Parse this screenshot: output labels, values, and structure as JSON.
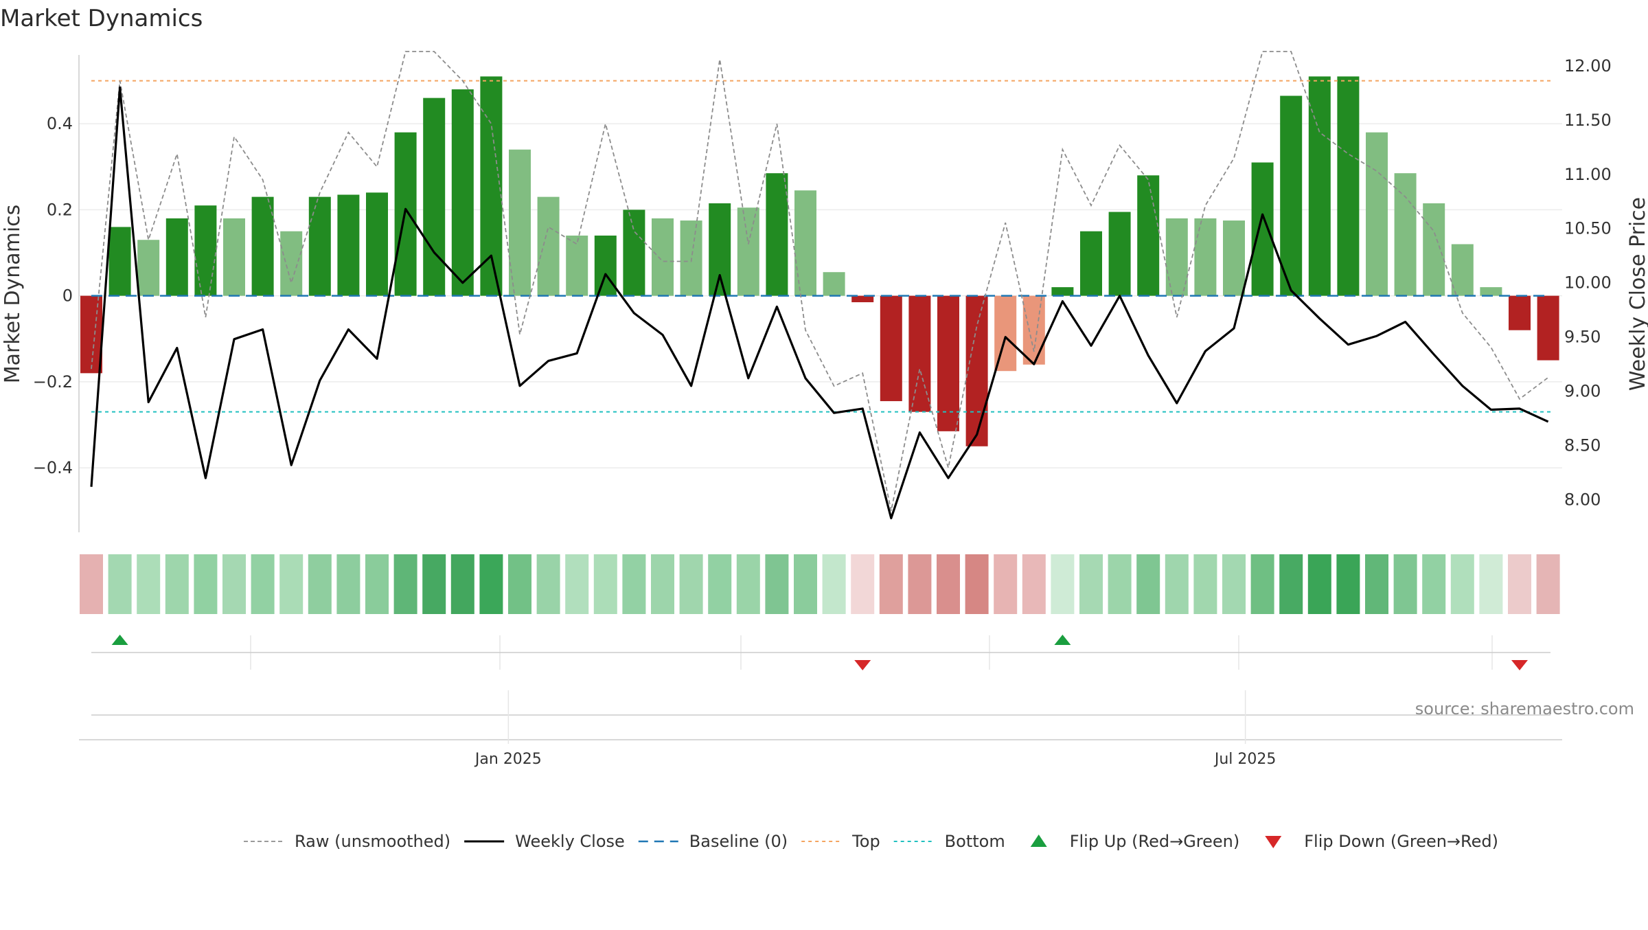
{
  "title": "Market Dynamics",
  "source_text": "source: sharemaestro.com",
  "chart_data": {
    "type": "bar",
    "title": "Market Dynamics",
    "y_left_label": "Market Dynamics",
    "y_right_label": "Weekly Close Price",
    "y_left_range": [
      -0.55,
      0.56
    ],
    "y_right_range": [
      7.7,
      12.1
    ],
    "y_left_ticks": [
      "−0.4",
      "−0.2",
      "0",
      "0.2",
      "0.4"
    ],
    "y_left_tick_values": [
      -0.4,
      -0.2,
      0,
      0.2,
      0.4
    ],
    "y_right_ticks": [
      "8.00",
      "8.50",
      "9.00",
      "9.50",
      "10.00",
      "10.50",
      "11.00",
      "11.50",
      "12.00"
    ],
    "y_right_tick_values": [
      8.0,
      8.5,
      9.0,
      9.5,
      10.0,
      10.5,
      11.0,
      11.5,
      12.0
    ],
    "x_tick_labels": [
      {
        "label": "Jan 2025",
        "index": 14.6
      },
      {
        "label": "Jul 2025",
        "index": 40.4
      }
    ],
    "baseline": 0,
    "top_level": 0.5,
    "bottom_level": -0.27,
    "bars": [
      -0.18,
      0.16,
      0.13,
      0.18,
      0.21,
      0.18,
      0.23,
      0.15,
      0.23,
      0.235,
      0.24,
      0.38,
      0.46,
      0.48,
      0.51,
      0.34,
      0.23,
      0.14,
      0.14,
      0.2,
      0.18,
      0.175,
      0.215,
      0.205,
      0.285,
      0.245,
      0.055,
      -0.015,
      -0.245,
      -0.27,
      -0.315,
      -0.35,
      -0.175,
      -0.16,
      0.02,
      0.15,
      0.195,
      0.28,
      0.18,
      0.18,
      0.175,
      0.31,
      0.465,
      0.51,
      0.51,
      0.38,
      0.285,
      0.215,
      0.12,
      0.02,
      -0.08,
      -0.15
    ],
    "bar_shades": [
      "dark_red",
      "dark_green",
      "light_green",
      "dark_green",
      "dark_green",
      "light_green",
      "dark_green",
      "light_green",
      "dark_green",
      "dark_green",
      "dark_green",
      "dark_green",
      "dark_green",
      "dark_green",
      "dark_green",
      "light_green",
      "light_green",
      "light_green",
      "dark_green",
      "dark_green",
      "light_green",
      "light_green",
      "dark_green",
      "light_green",
      "dark_green",
      "light_green",
      "light_green",
      "dark_red",
      "dark_red",
      "dark_red",
      "dark_red",
      "dark_red",
      "light_red",
      "light_red",
      "dark_green",
      "dark_green",
      "dark_green",
      "dark_green",
      "light_green",
      "light_green",
      "light_green",
      "dark_green",
      "dark_green",
      "dark_green",
      "dark_green",
      "light_green",
      "light_green",
      "light_green",
      "light_green",
      "light_green",
      "dark_red",
      "dark_red"
    ],
    "weekly_close": [
      8.12,
      11.8,
      8.9,
      9.4,
      8.2,
      9.48,
      9.57,
      8.32,
      9.1,
      9.57,
      9.3,
      10.68,
      10.28,
      10.0,
      10.25,
      9.05,
      9.28,
      9.35,
      10.08,
      9.72,
      9.52,
      9.05,
      10.07,
      9.12,
      9.78,
      9.12,
      8.8,
      8.84,
      7.83,
      8.62,
      8.2,
      8.6,
      9.5,
      9.25,
      9.83,
      9.42,
      9.88,
      9.33,
      8.89,
      9.37,
      9.58,
      10.63,
      9.93,
      9.67,
      9.43,
      9.51,
      9.64,
      9.34,
      9.05,
      8.83,
      8.84,
      8.72
    ],
    "raw_unsmoothed": [
      -0.17,
      0.5,
      0.13,
      0.33,
      -0.05,
      0.37,
      0.27,
      0.03,
      0.24,
      0.38,
      0.3,
      0.58,
      0.57,
      0.5,
      0.4,
      -0.09,
      0.16,
      0.12,
      0.4,
      0.15,
      0.08,
      0.08,
      0.55,
      0.12,
      0.4,
      -0.08,
      -0.21,
      -0.18,
      -0.5,
      -0.17,
      -0.4,
      -0.07,
      0.17,
      -0.13,
      0.34,
      0.21,
      0.35,
      0.27,
      -0.05,
      0.21,
      0.32,
      0.58,
      0.57,
      0.38,
      0.33,
      0.29,
      0.23,
      0.15,
      -0.04,
      -0.12,
      -0.24,
      -0.19
    ],
    "strip_colors": [
      "#e5b1b1",
      "#a3d8b1",
      "#acddb8",
      "#9ed6ac",
      "#91d1a2",
      "#a5d8b2",
      "#92d1a3",
      "#aadcb6",
      "#8fce9f",
      "#8dcd9e",
      "#8acc9b",
      "#5fb677",
      "#47a962",
      "#43a75e",
      "#3ba759",
      "#72c186",
      "#99d3a8",
      "#b1dfbd",
      "#acddb8",
      "#93d1a4",
      "#9dd5ab",
      "#a0d6ad",
      "#92d1a3",
      "#9ad4a8",
      "#7fc592",
      "#8bcc9c",
      "#c3e7cc",
      "#f2d7d7",
      "#dfa09d",
      "#dc9896",
      "#d98f8d",
      "#d68784",
      "#e7b4b3",
      "#e8b8b8",
      "#cfebd6",
      "#a6d9b3",
      "#9cd5aa",
      "#7fc692",
      "#9fd6ad",
      "#a1d7ae",
      "#a3d8b1",
      "#6fbf83",
      "#48aa63",
      "#3aa557",
      "#3aa557",
      "#61b778",
      "#7fc692",
      "#92d1a3",
      "#b0dfbc",
      "#d0ebd6",
      "#eccbcb",
      "#e5b5b5"
    ],
    "flip_up_indices": [
      1,
      34
    ],
    "flip_down_indices": [
      27,
      50
    ],
    "legend": [
      {
        "label": "Raw (unsmoothed)",
        "kind": "line-dashed-gray"
      },
      {
        "label": "Weekly Close",
        "kind": "line-solid-black"
      },
      {
        "label": "Baseline (0)",
        "kind": "line-dashed-blue"
      },
      {
        "label": "Top",
        "kind": "line-dotted-orange"
      },
      {
        "label": "Bottom",
        "kind": "line-dotted-teal"
      },
      {
        "label": "Flip Up (Red→Green)",
        "kind": "marker-up"
      },
      {
        "label": "Flip Down (Green→Red)",
        "kind": "marker-down"
      }
    ],
    "legend_position": "bottom-center",
    "grid": true
  },
  "colors": {
    "dark_green": "#228b22",
    "light_green": "#81bd81",
    "dark_red": "#b22222",
    "light_red": "#e9967a",
    "raw_line": "#8c8c8c",
    "close_line": "#000000",
    "baseline": "#1f77b4",
    "top": "#f4a460",
    "bottom": "#20c0c0",
    "flip_up": "#1a9e3f",
    "flip_down": "#d62728",
    "grid": "#ececec",
    "axis": "#cccccc"
  }
}
